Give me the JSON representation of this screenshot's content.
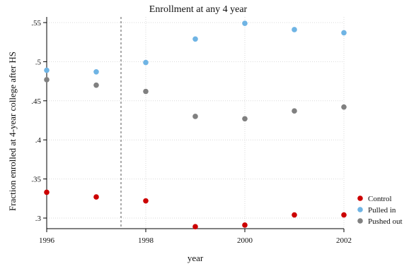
{
  "chart_data": {
    "type": "scatter",
    "title": "Enrollment at any 4 year",
    "xlabel": "year",
    "ylabel": "Fraction enrolled at 4-year college after HS",
    "xlim": [
      1996,
      2002
    ],
    "ylim": [
      0.29,
      0.555
    ],
    "x_ticks": [
      1996,
      1998,
      2000,
      2002
    ],
    "x_tick_labels": [
      "1996",
      "1998",
      "2000",
      "2002"
    ],
    "y_ticks": [
      0.3,
      0.35,
      0.4,
      0.45,
      0.5,
      0.55
    ],
    "y_tick_labels": [
      ".3",
      ".35",
      ".4",
      ".45",
      ".5",
      ".55"
    ],
    "x_gridlines": [
      1996,
      1998,
      2000,
      2002
    ],
    "y_gridlines": [
      0.3,
      0.35,
      0.4,
      0.45,
      0.5,
      0.55
    ],
    "grid": true,
    "reference_line_x": 1997.5,
    "legend_position": "right",
    "x": [
      1996,
      1997,
      1998,
      1999,
      2000,
      2001,
      2002
    ],
    "series": [
      {
        "name": "Control",
        "color": "#cc0000",
        "values": [
          0.333,
          0.327,
          0.322,
          0.289,
          0.291,
          0.304,
          0.304
        ]
      },
      {
        "name": "Pulled in",
        "color": "#6fb4e4",
        "values": [
          0.489,
          0.487,
          0.499,
          0.529,
          0.549,
          0.541,
          0.537
        ]
      },
      {
        "name": "Pushed out",
        "color": "#808080",
        "values": [
          0.477,
          0.47,
          0.462,
          0.43,
          0.427,
          0.437,
          0.442
        ]
      }
    ]
  }
}
